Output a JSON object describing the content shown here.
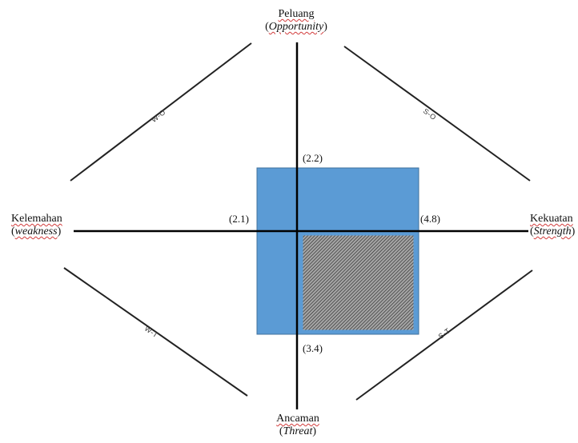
{
  "labels": {
    "top": {
      "name": "Peluang",
      "english": "Opportunity"
    },
    "bottom": {
      "name": "Ancaman",
      "english": "Threat"
    },
    "left": {
      "name": "Kelemahan",
      "english": "weakness"
    },
    "right": {
      "name": "Kekuatan",
      "english": "Strength"
    }
  },
  "quadrants": {
    "top_left": "W-O",
    "top_right": "S-O",
    "bottom_left": "W-T",
    "bottom_right": "S-T"
  },
  "coordinates": {
    "top": "(2.2)",
    "left": "(2.1)",
    "right": "(4.8)",
    "bottom": "(3.4)"
  },
  "colors": {
    "rectangle_fill": "#5b9bd5",
    "rectangle_border": "#41719c",
    "hatch_fill": "#9a9a9a",
    "hatch_stroke": "#2f2f2f",
    "lines": "#222222"
  }
}
